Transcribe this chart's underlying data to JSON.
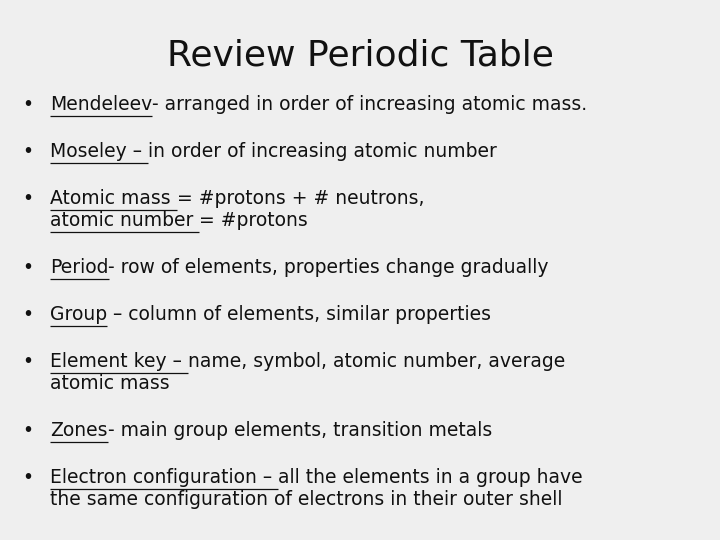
{
  "title": "Review Periodic Table",
  "background_color": "#efefef",
  "title_fontsize": 26,
  "bullet_fontsize": 13.5,
  "title_color": "#111111",
  "text_color": "#111111",
  "bullets": [
    {
      "underlined": "Mendeleev",
      "rest": "- arranged in order of increasing atomic mass.",
      "continuation": null,
      "continuation_underlined": null
    },
    {
      "underlined": "Moseley – ",
      "rest": "in order of increasing atomic number",
      "continuation": null,
      "continuation_underlined": null
    },
    {
      "underlined": "Atomic mass ",
      "rest": "= #protons + # neutrons,",
      "continuation": "atomic number = #protons",
      "continuation_underlined": "atomic number "
    },
    {
      "underlined": "Period",
      "rest": "- row of elements, properties change gradually",
      "continuation": null,
      "continuation_underlined": null
    },
    {
      "underlined": "Group",
      "rest": " – column of elements, similar properties",
      "continuation": null,
      "continuation_underlined": null
    },
    {
      "underlined": "Element key – ",
      "rest": "name, symbol, atomic number, average",
      "continuation": "atomic mass",
      "continuation_underlined": null
    },
    {
      "underlined": "Zones",
      "rest": "- main group elements, transition metals",
      "continuation": null,
      "continuation_underlined": null
    },
    {
      "underlined": "Electron configuration – ",
      "rest": "all the elements in a group have",
      "continuation": "the same configuration of electrons in their outer shell",
      "continuation_underlined": null
    }
  ]
}
